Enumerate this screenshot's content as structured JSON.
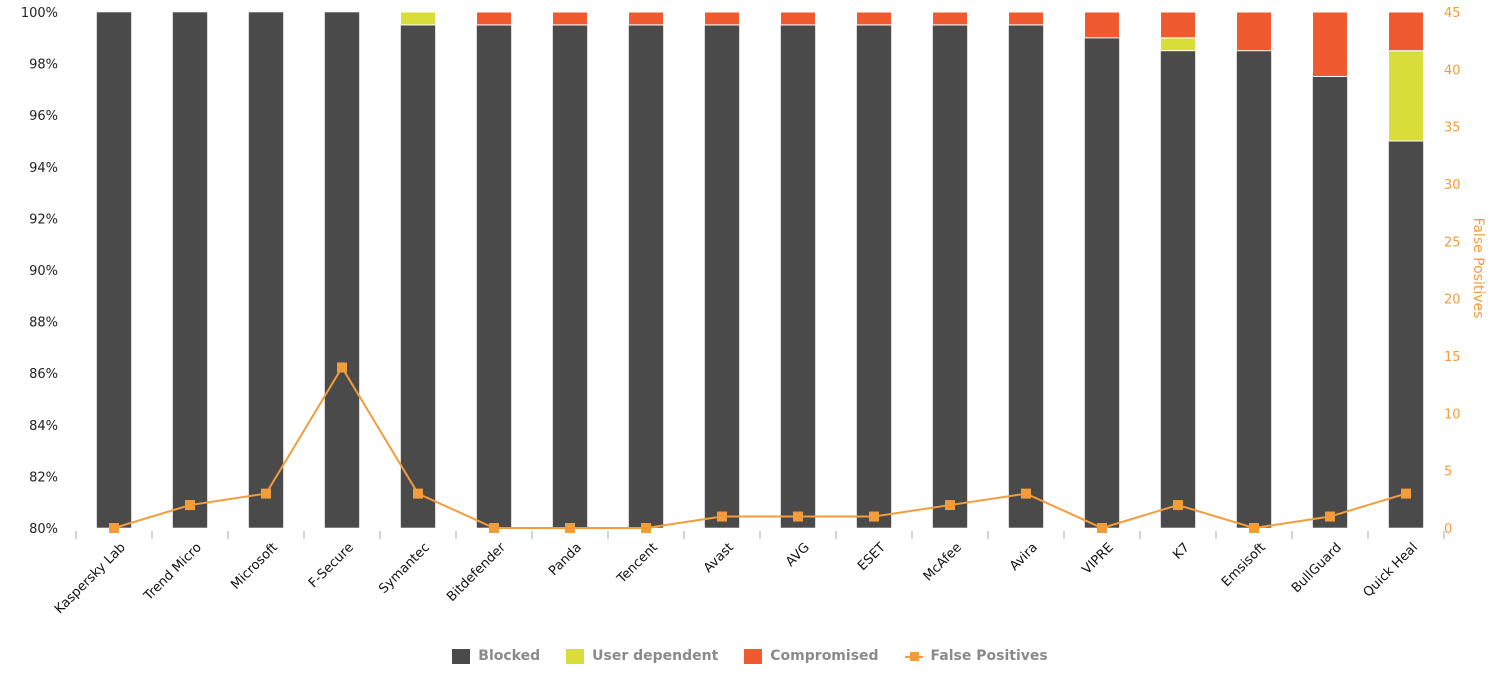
{
  "chart_data": {
    "type": "bar",
    "stacked": true,
    "categories": [
      "Kaspersky Lab",
      "Trend Micro",
      "Microsoft",
      "F-Secure",
      "Symantec",
      "Bitdefender",
      "Panda",
      "Tencent",
      "Avast",
      "AVG",
      "ESET",
      "McAfee",
      "Avira",
      "VIPRE",
      "K7",
      "Emsisoft",
      "BullGuard",
      "Quick Heal"
    ],
    "series": [
      {
        "name": "Blocked",
        "type": "bar",
        "axis": "left",
        "color": "#4a4a4a",
        "values": [
          100,
          100,
          100,
          100,
          99.5,
          99.5,
          99.5,
          99.5,
          99.5,
          99.5,
          99.5,
          99.5,
          99.5,
          99,
          98.5,
          98.5,
          97.5,
          95
        ]
      },
      {
        "name": "User dependent",
        "type": "bar",
        "axis": "left",
        "color": "#d9dd3a",
        "values": [
          0,
          0,
          0,
          0,
          0.5,
          0,
          0,
          0,
          0,
          0,
          0,
          0,
          0,
          0,
          0.5,
          0,
          0,
          3.5
        ]
      },
      {
        "name": "Compromised",
        "type": "bar",
        "axis": "left",
        "color": "#f05a30",
        "values": [
          0,
          0,
          0,
          0,
          0,
          0.5,
          0.5,
          0.5,
          0.5,
          0.5,
          0.5,
          0.5,
          0.5,
          1,
          1,
          1.5,
          2.5,
          1.5
        ]
      },
      {
        "name": "False Positives",
        "type": "line",
        "axis": "right",
        "color": "#f39c3c",
        "marker": "square",
        "values": [
          0,
          2,
          3,
          14,
          3,
          0,
          0,
          0,
          1,
          1,
          1,
          2,
          3,
          0,
          2,
          0,
          1,
          3
        ]
      }
    ],
    "title": "",
    "xlabel": "",
    "ylabel": "",
    "ylabel_right": "False Positives",
    "ylim": [
      80,
      100
    ],
    "ylim_right": [
      0,
      45
    ],
    "yticks": [
      "80%",
      "82%",
      "84%",
      "86%",
      "88%",
      "90%",
      "92%",
      "94%",
      "96%",
      "98%",
      "100%"
    ],
    "yticks_right": [
      "0",
      "5",
      "10",
      "15",
      "20",
      "25",
      "30",
      "35",
      "40",
      "45"
    ],
    "grid": false,
    "legend_position": "bottom"
  },
  "legend": {
    "items": [
      {
        "label": "Blocked",
        "color": "#4a4a4a",
        "kind": "swatch"
      },
      {
        "label": "User dependent",
        "color": "#d9dd3a",
        "kind": "swatch"
      },
      {
        "label": "Compromised",
        "color": "#f05a30",
        "kind": "swatch"
      },
      {
        "label": "False Positives",
        "color": "#f39c3c",
        "kind": "line"
      }
    ]
  }
}
